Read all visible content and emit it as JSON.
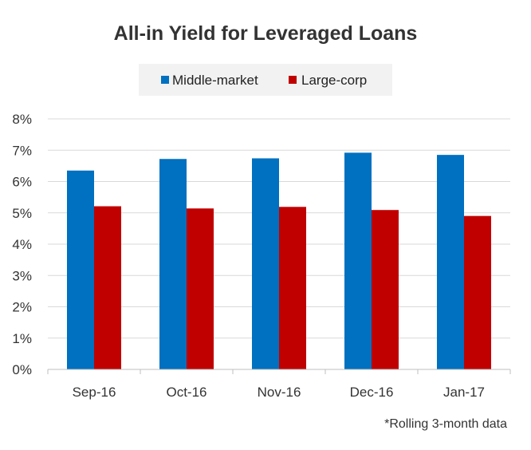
{
  "chart_data": {
    "type": "bar",
    "title": "All-in Yield for Leveraged Loans",
    "categories": [
      "Sep-16",
      "Oct-16",
      "Nov-16",
      "Dec-16",
      "Jan-17"
    ],
    "series": [
      {
        "name": "Middle-market",
        "color": "#0070C0",
        "values": [
          6.35,
          6.72,
          6.74,
          6.92,
          6.85
        ]
      },
      {
        "name": "Large-corp",
        "color": "#C00000",
        "values": [
          5.21,
          5.14,
          5.19,
          5.09,
          4.9
        ]
      }
    ],
    "yticks": [
      "0%",
      "1%",
      "2%",
      "3%",
      "4%",
      "5%",
      "6%",
      "7%",
      "8%"
    ],
    "ylim": [
      0,
      8
    ],
    "grid": true,
    "legend_position": "top-center",
    "annotation": "*Rolling 3-month data"
  }
}
